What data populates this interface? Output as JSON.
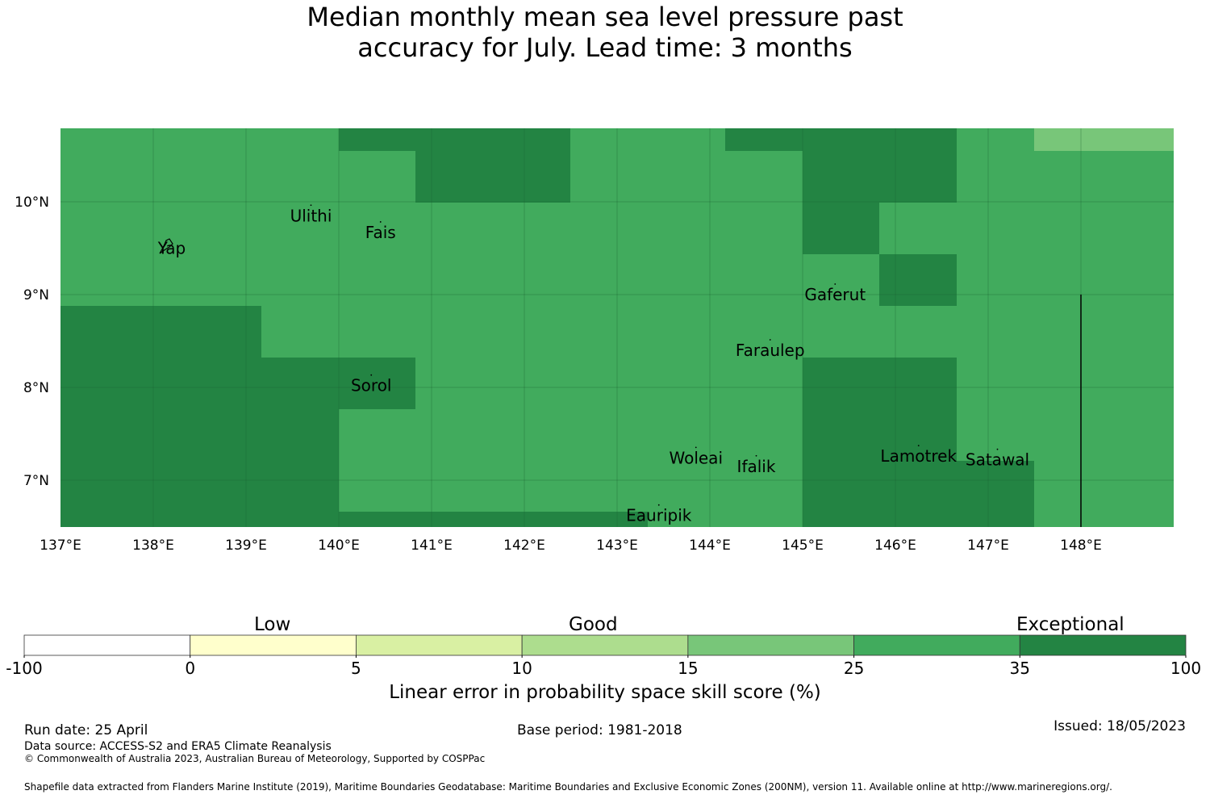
{
  "title": {
    "line1": "Median monthly mean sea level pressure past",
    "line2": "accuracy for July. Lead time: 3 months"
  },
  "map": {
    "lon_range": [
      137,
      149
    ],
    "lat_range": [
      6.5,
      10.8
    ],
    "x_ticks": [
      "137°E",
      "138°E",
      "139°E",
      "140°E",
      "141°E",
      "142°E",
      "143°E",
      "144°E",
      "145°E",
      "146°E",
      "147°E",
      "148°E"
    ],
    "y_ticks": [
      "10°N",
      "9°N",
      "8°N",
      "7°N"
    ],
    "colors": {
      "good_25_35": "#41ab5d",
      "exceptional_35_100": "#238443",
      "good_15_25": "#78c679"
    },
    "places": [
      {
        "name": "Yap",
        "lon": 138.2,
        "lat": 9.5
      },
      {
        "name": "Ulithi",
        "lon": 139.7,
        "lat": 9.85
      },
      {
        "name": "Fais",
        "lon": 140.45,
        "lat": 9.67
      },
      {
        "name": "Gaferut",
        "lon": 145.35,
        "lat": 9.0
      },
      {
        "name": "Faraulep",
        "lon": 144.65,
        "lat": 8.4
      },
      {
        "name": "Sorol",
        "lon": 140.35,
        "lat": 8.02
      },
      {
        "name": "Woleai",
        "lon": 143.85,
        "lat": 7.24
      },
      {
        "name": "Ifalik",
        "lon": 144.5,
        "lat": 7.15
      },
      {
        "name": "Lamotrek",
        "lon": 146.25,
        "lat": 7.26
      },
      {
        "name": "Satawal",
        "lon": 147.1,
        "lat": 7.22
      },
      {
        "name": "Eauripik",
        "lon": 143.45,
        "lat": 6.62
      }
    ]
  },
  "colorbar": {
    "category_labels": [
      "Low",
      "Good",
      "Exceptional"
    ],
    "ticks": [
      "-100",
      "0",
      "5",
      "10",
      "15",
      "25",
      "35",
      "100"
    ],
    "bins": [
      {
        "from": -100,
        "to": 0,
        "color": "#ffffff"
      },
      {
        "from": 0,
        "to": 5,
        "color": "#ffffcc"
      },
      {
        "from": 5,
        "to": 10,
        "color": "#d9f0a3"
      },
      {
        "from": 10,
        "to": 15,
        "color": "#addd8e"
      },
      {
        "from": 15,
        "to": 25,
        "color": "#78c679"
      },
      {
        "from": 25,
        "to": 35,
        "color": "#41ab5d"
      },
      {
        "from": 35,
        "to": 100,
        "color": "#238443"
      }
    ],
    "label": "Linear error in probability space skill score (%)"
  },
  "footer": {
    "run_date": "Run date: 25 April",
    "base_period": "Base period: 1981-2018",
    "issued": "Issued: 18/05/2023",
    "data_source": "Data source: ACCESS-S2 and ERA5 Climate Reanalysis",
    "copyright": "© Commonwealth of Australia 2023, Australian Bureau of Meteorology, Supported by COSPPac",
    "shapefile": "Shapefile data extracted from Flanders Marine Institute (2019), Maritime Boundaries Geodatabase: Maritime Boundaries and Exclusive Economic Zones (200NM), version 11. Available online at http://www.marineregions.org/."
  }
}
